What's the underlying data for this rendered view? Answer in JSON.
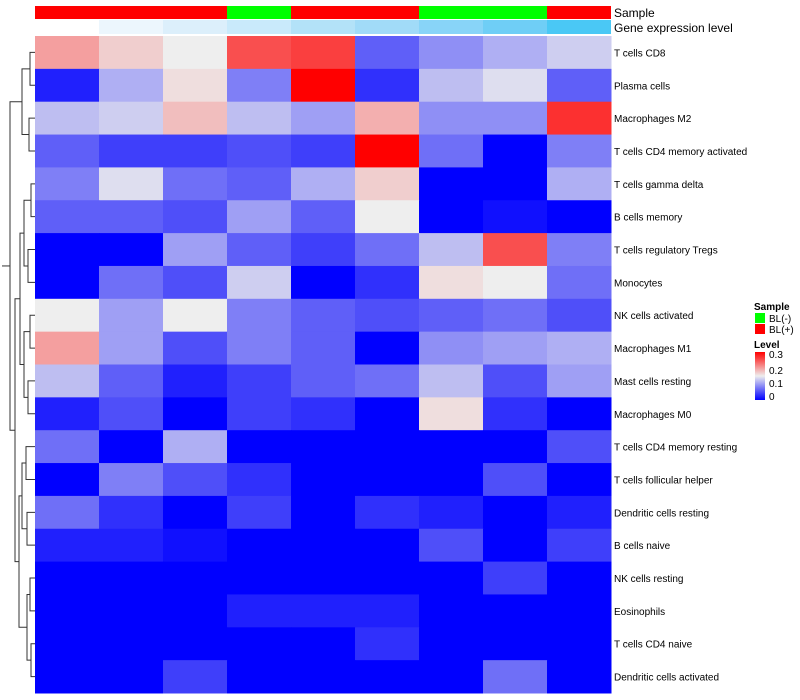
{
  "chart_data": {
    "type": "heatmap",
    "annotations": {
      "sample": {
        "label": "Sample",
        "values": [
          "BL(+)",
          "BL(+)",
          "BL(+)",
          "BL(-)",
          "BL(+)",
          "BL(+)",
          "BL(-)",
          "BL(-)",
          "BL(+)"
        ]
      },
      "gene_expression": {
        "label": "Gene expression level",
        "levels": [
          0,
          1,
          2,
          3,
          4,
          5,
          6,
          7,
          8
        ],
        "colors": [
          "#FFFFFF",
          "#ECF6FD",
          "#DCEFFB",
          "#C9EAFB",
          "#B3E2F8",
          "#A1DBF8",
          "#88D4F8",
          "#6FCEF6",
          "#4AC8F5"
        ]
      }
    },
    "rows": [
      "T cells CD8",
      "Plasma cells",
      "Macrophages M2",
      "T cells CD4 memory activated",
      "T cells gamma delta",
      "B cells memory",
      "T cells regulatory  Tregs",
      "Monocytes",
      "NK cells activated",
      "Macrophages M1",
      "Mast cells resting",
      "Macrophages M0",
      "T cells CD4 memory resting",
      "T cells follicular helper",
      "Dendritic cells resting",
      "B cells naive",
      "NK cells resting",
      "Eosinophils",
      "T cells CD4 naive",
      "Dendritic cells activated"
    ],
    "values": [
      [
        0.2,
        0.17,
        0.15,
        0.25,
        0.26,
        0.06,
        0.09,
        0.11,
        0.13
      ],
      [
        0.02,
        0.11,
        0.16,
        0.08,
        0.3,
        0.03,
        0.12,
        0.14,
        0.06
      ],
      [
        0.12,
        0.13,
        0.18,
        0.12,
        0.1,
        0.19,
        0.09,
        0.09,
        0.27
      ],
      [
        0.06,
        0.04,
        0.04,
        0.05,
        0.04,
        0.3,
        0.07,
        0.0,
        0.08
      ],
      [
        0.08,
        0.14,
        0.07,
        0.06,
        0.11,
        0.17,
        0.0,
        0.0,
        0.11
      ],
      [
        0.06,
        0.06,
        0.05,
        0.1,
        0.06,
        0.15,
        0.0,
        0.01,
        0.0
      ],
      [
        0.0,
        0.0,
        0.1,
        0.06,
        0.04,
        0.07,
        0.12,
        0.25,
        0.08
      ],
      [
        0.0,
        0.07,
        0.05,
        0.13,
        0.0,
        0.03,
        0.16,
        0.15,
        0.07
      ],
      [
        0.15,
        0.1,
        0.15,
        0.08,
        0.06,
        0.05,
        0.06,
        0.07,
        0.05
      ],
      [
        0.2,
        0.1,
        0.05,
        0.08,
        0.06,
        0.0,
        0.09,
        0.1,
        0.11
      ],
      [
        0.12,
        0.06,
        0.02,
        0.04,
        0.06,
        0.07,
        0.12,
        0.05,
        0.1
      ],
      [
        0.02,
        0.05,
        0.0,
        0.04,
        0.03,
        0.0,
        0.16,
        0.03,
        0.0
      ],
      [
        0.07,
        0.0,
        0.11,
        0.0,
        0.0,
        0.0,
        0.0,
        0.0,
        0.05
      ],
      [
        0.0,
        0.08,
        0.05,
        0.03,
        0.0,
        0.0,
        0.0,
        0.05,
        0.0
      ],
      [
        0.07,
        0.03,
        0.0,
        0.04,
        0.0,
        0.03,
        0.02,
        0.0,
        0.02
      ],
      [
        0.02,
        0.02,
        0.01,
        0.0,
        0.0,
        0.0,
        0.05,
        0.0,
        0.04
      ],
      [
        0.0,
        0.0,
        0.0,
        0.0,
        0.0,
        0.0,
        0.0,
        0.04,
        0.0
      ],
      [
        0.0,
        0.0,
        0.0,
        0.02,
        0.02,
        0.02,
        0.0,
        0.0,
        0.0
      ],
      [
        0.0,
        0.0,
        0.0,
        0.0,
        0.0,
        0.03,
        0.0,
        0.0,
        0.0
      ],
      [
        0.0,
        0.0,
        0.04,
        0.0,
        0.0,
        0.0,
        0.0,
        0.07,
        0.0
      ]
    ],
    "legend": {
      "sample_title": "Sample",
      "sample_items": [
        {
          "label": "BL(-)",
          "color": "#00FF00"
        },
        {
          "label": "BL(+)",
          "color": "#FF0000"
        }
      ],
      "level_title": "Level",
      "level_ticks": [
        "0.3",
        "0.2",
        "0.1",
        "0"
      ],
      "range": [
        0,
        0.3
      ],
      "colors": {
        "low": "#0000FF",
        "mid": "#EEEEEE",
        "high": "#FF0000"
      },
      "placement": "right"
    }
  }
}
